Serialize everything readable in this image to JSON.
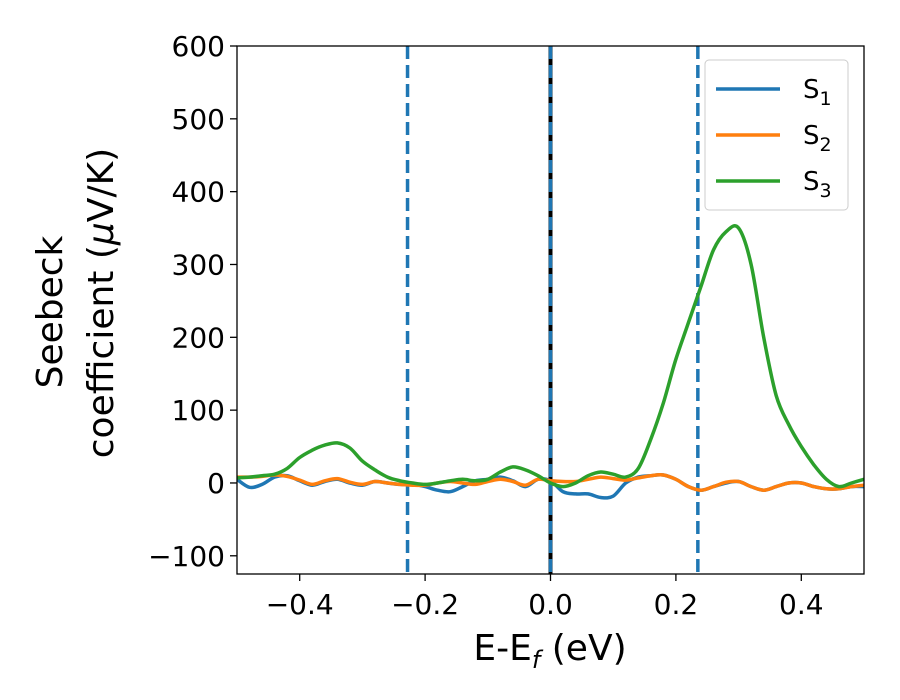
{
  "chart_data": {
    "type": "line",
    "xlabel": {
      "main": "E-E",
      "sub": "f",
      "suffix": " (eV)"
    },
    "ylabel": {
      "line1": "Seebeck",
      "line2_pre": "coefficient  (",
      "line2_mu": "μ",
      "line2_post": "V/K)"
    },
    "xlim": [
      -0.5,
      0.5
    ],
    "ylim": [
      -125,
      600
    ],
    "xticks": [
      -0.4,
      -0.2,
      0.0,
      0.2,
      0.4
    ],
    "xtick_labels": [
      "−0.4",
      "−0.2",
      "0.0",
      "0.2",
      "0.4"
    ],
    "yticks": [
      -100,
      0,
      100,
      200,
      300,
      400,
      500,
      600
    ],
    "ytick_labels": [
      "−100",
      "0",
      "100",
      "200",
      "300",
      "400",
      "500",
      "600"
    ],
    "legend_position": "top-right",
    "vlines": [
      {
        "x": -0.228,
        "style": "dashed",
        "color": "#1f77b4"
      },
      {
        "x": 0.0,
        "style": "solid",
        "color": "#000000"
      },
      {
        "x": 0.0,
        "style": "dashed",
        "color": "#1f77b4"
      },
      {
        "x": 0.235,
        "style": "dashed",
        "color": "#1f77b4"
      }
    ],
    "series": [
      {
        "name": "S",
        "sub": "1",
        "color": "#1f77b4",
        "x": [
          -0.5,
          -0.48,
          -0.46,
          -0.44,
          -0.42,
          -0.4,
          -0.38,
          -0.36,
          -0.34,
          -0.32,
          -0.3,
          -0.28,
          -0.26,
          -0.24,
          -0.22,
          -0.2,
          -0.18,
          -0.16,
          -0.14,
          -0.12,
          -0.1,
          -0.08,
          -0.06,
          -0.04,
          -0.02,
          0.0,
          0.02,
          0.04,
          0.06,
          0.08,
          0.1,
          0.12,
          0.14,
          0.16,
          0.18,
          0.2,
          0.22,
          0.24,
          0.26,
          0.28,
          0.3,
          0.32,
          0.34,
          0.36,
          0.38,
          0.4,
          0.42,
          0.44,
          0.46,
          0.48,
          0.5
        ],
        "y": [
          5,
          -6,
          -2,
          8,
          10,
          3,
          -3,
          2,
          5,
          0,
          -3,
          2,
          0,
          -2,
          -2,
          -5,
          -10,
          -12,
          -5,
          3,
          5,
          8,
          3,
          -5,
          5,
          3,
          -12,
          -15,
          -15,
          -20,
          -18,
          0,
          8,
          10,
          11,
          5,
          -5,
          -10,
          -5,
          0,
          2,
          -5,
          -10,
          -5,
          0,
          0,
          -5,
          -8,
          -8,
          -5,
          -5
        ]
      },
      {
        "name": "S",
        "sub": "2",
        "color": "#ff7f0e",
        "x": [
          -0.5,
          -0.48,
          -0.46,
          -0.44,
          -0.42,
          -0.4,
          -0.38,
          -0.36,
          -0.34,
          -0.32,
          -0.3,
          -0.28,
          -0.26,
          -0.24,
          -0.22,
          -0.2,
          -0.18,
          -0.16,
          -0.14,
          -0.12,
          -0.1,
          -0.08,
          -0.06,
          -0.04,
          -0.02,
          0.0,
          0.02,
          0.04,
          0.06,
          0.08,
          0.1,
          0.12,
          0.14,
          0.16,
          0.18,
          0.2,
          0.22,
          0.24,
          0.26,
          0.28,
          0.3,
          0.32,
          0.34,
          0.36,
          0.38,
          0.4,
          0.42,
          0.44,
          0.46,
          0.48,
          0.5
        ],
        "y": [
          8,
          8,
          9,
          11,
          9,
          4,
          -2,
          3,
          6,
          1,
          -2,
          2,
          0,
          -2,
          -3,
          -3,
          0,
          2,
          0,
          -2,
          2,
          5,
          2,
          -3,
          5,
          3,
          2,
          2,
          5,
          8,
          6,
          4,
          7,
          10,
          11,
          5,
          -5,
          -10,
          -5,
          1,
          2,
          -5,
          -10,
          -5,
          0,
          0,
          -5,
          -8,
          -8,
          -5,
          -3
        ]
      },
      {
        "name": "S",
        "sub": "3",
        "color": "#2ca02c",
        "x": [
          -0.5,
          -0.48,
          -0.46,
          -0.44,
          -0.42,
          -0.4,
          -0.38,
          -0.36,
          -0.34,
          -0.32,
          -0.3,
          -0.28,
          -0.26,
          -0.24,
          -0.22,
          -0.2,
          -0.18,
          -0.16,
          -0.14,
          -0.12,
          -0.1,
          -0.08,
          -0.06,
          -0.04,
          -0.02,
          0.0,
          0.02,
          0.04,
          0.06,
          0.08,
          0.1,
          0.12,
          0.14,
          0.16,
          0.18,
          0.2,
          0.22,
          0.24,
          0.26,
          0.28,
          0.3,
          0.32,
          0.34,
          0.36,
          0.38,
          0.4,
          0.42,
          0.44,
          0.46,
          0.48,
          0.5
        ],
        "y": [
          7,
          8,
          10,
          12,
          20,
          35,
          45,
          52,
          55,
          48,
          30,
          18,
          8,
          3,
          0,
          -2,
          0,
          3,
          5,
          3,
          5,
          15,
          22,
          18,
          10,
          0,
          -5,
          0,
          10,
          15,
          12,
          8,
          20,
          60,
          110,
          170,
          220,
          270,
          320,
          345,
          350,
          300,
          200,
          120,
          80,
          50,
          25,
          5,
          -5,
          0,
          5
        ]
      }
    ]
  }
}
